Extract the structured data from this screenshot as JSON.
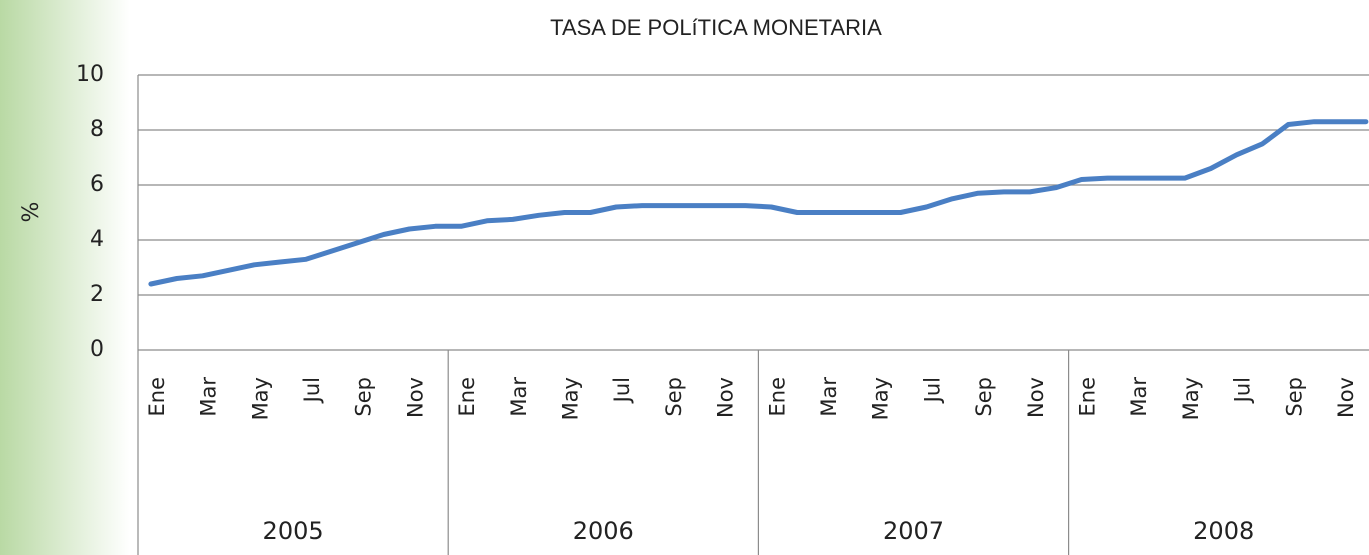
{
  "chart_data": {
    "type": "line",
    "title": "TASA DE POLíTICA MONETARIA",
    "y_label": "%",
    "categories": [
      "Ene",
      null,
      "Mar",
      null,
      "May",
      null,
      "Jul",
      null,
      "Sep",
      null,
      "Nov",
      null,
      "Ene",
      null,
      "Mar",
      null,
      "May",
      null,
      "Jul",
      null,
      "Sep",
      null,
      "Nov",
      null,
      "Ene",
      null,
      "Mar",
      null,
      "May",
      null,
      "Jul",
      null,
      "Sep",
      null,
      "Nov",
      null,
      "Ene",
      null,
      "Mar",
      null,
      "May",
      null,
      "Jul",
      null,
      "Sep",
      null,
      "Nov",
      null
    ],
    "year_groups": [
      "2005",
      "2006",
      "2007",
      "2008"
    ],
    "series": [
      {
        "color": "#4a7fc4",
        "values": [
          2.4,
          2.6,
          2.7,
          2.9,
          3.1,
          3.2,
          3.3,
          3.6,
          3.9,
          4.2,
          4.4,
          4.5,
          4.5,
          4.7,
          4.75,
          4.9,
          5.0,
          5.0,
          5.2,
          5.25,
          5.25,
          5.25,
          5.25,
          5.25,
          5.2,
          5.0,
          5.0,
          5.0,
          5.0,
          5.0,
          5.2,
          5.5,
          5.7,
          5.75,
          5.75,
          5.9,
          6.2,
          6.25,
          6.25,
          6.25,
          6.25,
          6.6,
          7.1,
          7.5,
          8.2,
          8.3,
          8.3,
          8.3
        ]
      }
    ],
    "ylim": [
      0,
      10
    ],
    "yticks": [
      0,
      2,
      4,
      6,
      8,
      10
    ],
    "grid": true
  }
}
